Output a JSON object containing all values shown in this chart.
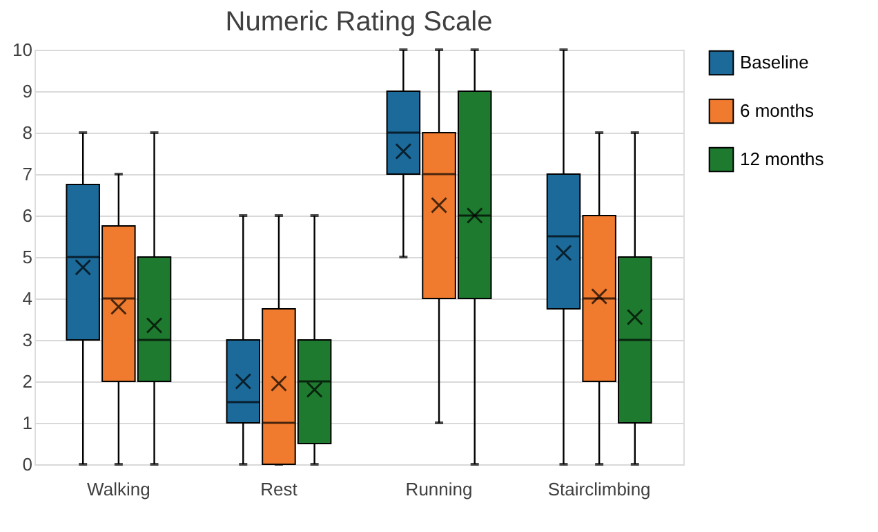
{
  "chart_data": {
    "type": "box",
    "title": "Numeric Rating Scale",
    "categories": [
      "Walking",
      "Rest",
      "Running",
      "Stairclimbing"
    ],
    "ylim": [
      0,
      10
    ],
    "yticks": [
      0,
      1,
      2,
      3,
      4,
      5,
      6,
      7,
      8,
      9,
      10
    ],
    "grid": "y",
    "legend": "right",
    "marker": "cross",
    "series": [
      {
        "name": "Baseline",
        "color": "#1b6a99",
        "boxes": [
          {
            "low": 0,
            "q1": 3,
            "median": 5,
            "q3": 6.75,
            "high": 8,
            "mean": 4.75
          },
          {
            "low": 0,
            "q1": 1,
            "median": 1.5,
            "q3": 3,
            "high": 6,
            "mean": 2
          },
          {
            "low": 5,
            "q1": 7,
            "median": 8,
            "q3": 9,
            "high": 10,
            "mean": 7.55
          },
          {
            "low": 0,
            "q1": 3.75,
            "median": 5.5,
            "q3": 7,
            "high": 10,
            "mean": 5.1
          }
        ]
      },
      {
        "name": "6 months",
        "color": "#f07a2e",
        "boxes": [
          {
            "low": 0,
            "q1": 2,
            "median": 4,
            "q3": 5.75,
            "high": 7,
            "mean": 3.8
          },
          {
            "low": 0,
            "q1": 0,
            "median": 1,
            "q3": 3.75,
            "high": 6,
            "mean": 1.95
          },
          {
            "low": 1,
            "q1": 4,
            "median": 7,
            "q3": 8,
            "high": 10,
            "mean": 6.25
          },
          {
            "low": 0,
            "q1": 2,
            "median": 4,
            "q3": 6,
            "high": 8,
            "mean": 4.05
          }
        ]
      },
      {
        "name": "12 months",
        "color": "#1e7a2f",
        "boxes": [
          {
            "low": 0,
            "q1": 2,
            "median": 3,
            "q3": 5,
            "high": 8,
            "mean": 3.35
          },
          {
            "low": 0,
            "q1": 0.5,
            "median": 2,
            "q3": 3,
            "high": 6,
            "mean": 1.8
          },
          {
            "low": 0,
            "q1": 4,
            "median": 6,
            "q3": 9,
            "high": 10,
            "mean": 6
          },
          {
            "low": 0,
            "q1": 1,
            "median": 3,
            "q3": 5,
            "high": 8,
            "mean": 3.55
          }
        ]
      }
    ]
  }
}
